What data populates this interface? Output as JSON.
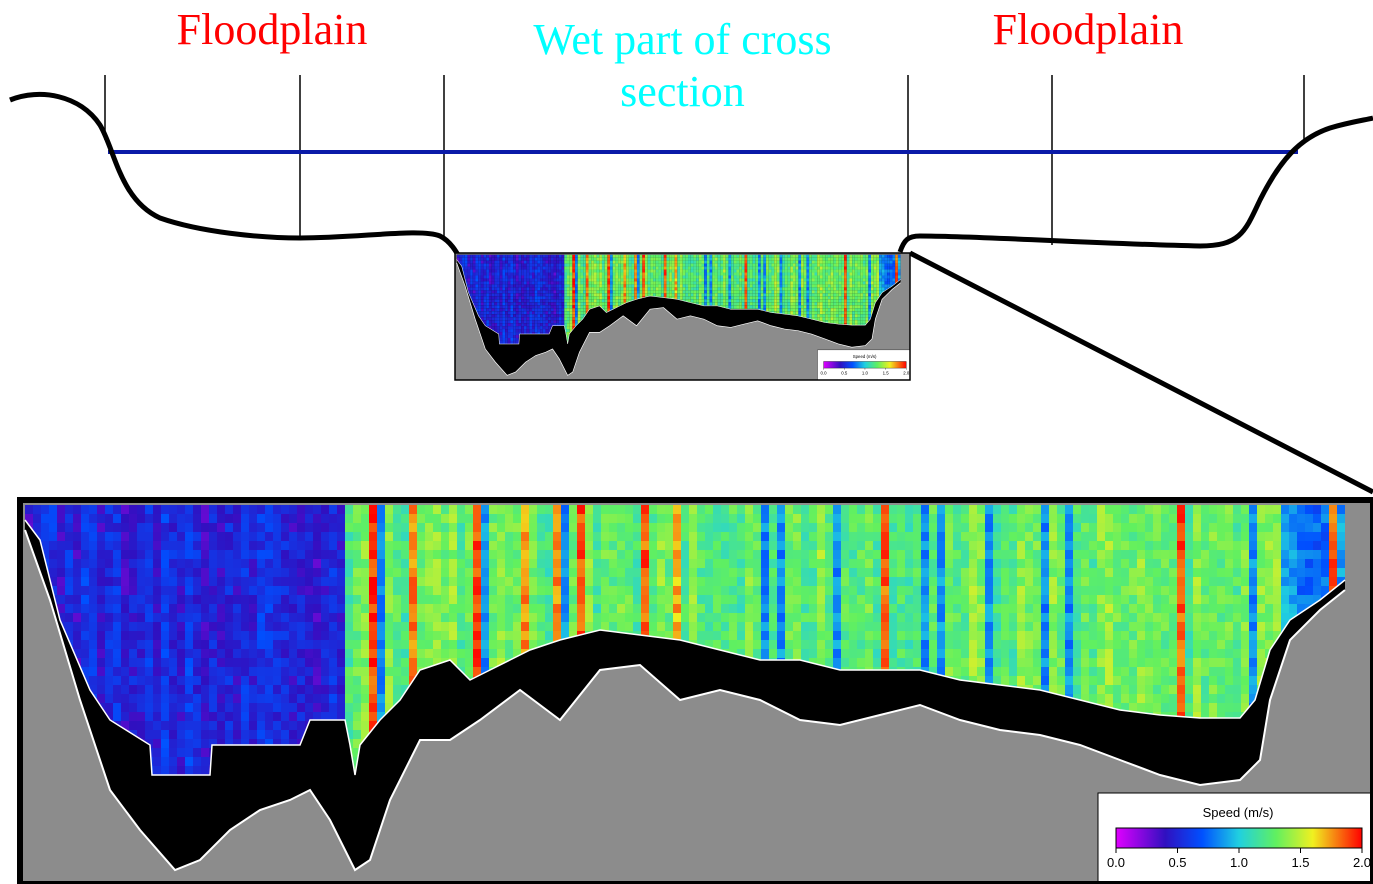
{
  "labels": {
    "left": "Floodplain",
    "center": "Wet part of cross section",
    "right": "Floodplain"
  },
  "legend": {
    "title": "Speed (m/s)",
    "ticks": [
      "0.0",
      "0.5",
      "1.0",
      "1.5",
      "2.0"
    ]
  }
}
